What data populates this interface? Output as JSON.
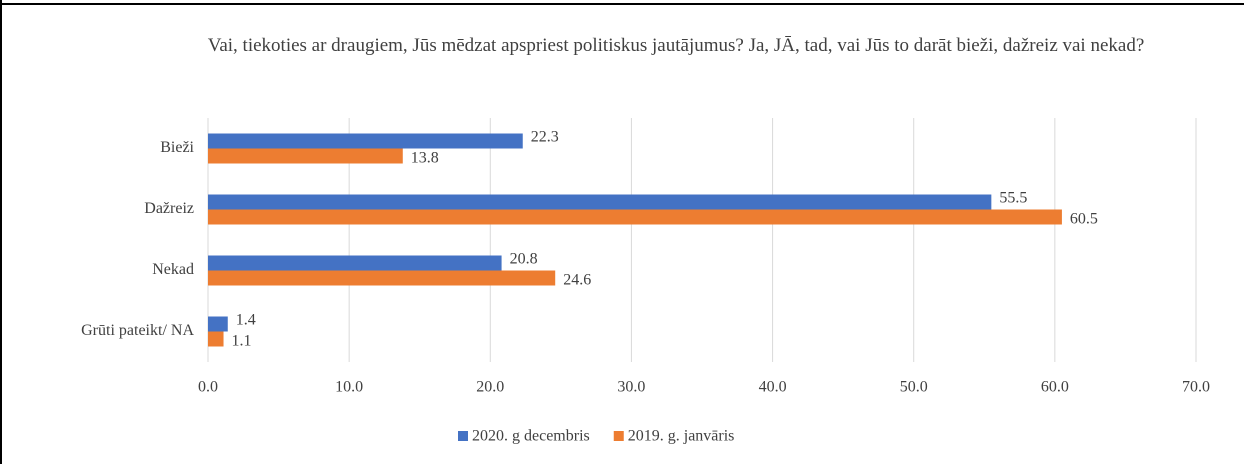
{
  "chart_data": {
    "type": "barh",
    "title": "Vai, tiekoties ar draugiem, Jūs mēdzat apspriest politiskus jautājumus? Ja, JĀ, tad, vai Jūs to darāt bieži, dažreiz vai nekad?",
    "categories": [
      "Bieži",
      "Dažreiz",
      "Nekad",
      "Grūti pateikt/ NA"
    ],
    "series": [
      {
        "name": "2020. g decembris",
        "color": "#4472c4",
        "values": [
          22.3,
          55.5,
          20.8,
          1.4
        ]
      },
      {
        "name": "2019. g. janvāris",
        "color": "#ed7d31",
        "values": [
          13.8,
          60.5,
          24.6,
          1.1
        ]
      }
    ],
    "xlim": [
      0,
      70
    ],
    "xticks": [
      {
        "value": 0,
        "label": "0.0"
      },
      {
        "value": 10,
        "label": "10.0"
      },
      {
        "value": 20,
        "label": "20.0"
      },
      {
        "value": 30,
        "label": "30.0"
      },
      {
        "value": 40,
        "label": "40.0"
      },
      {
        "value": 50,
        "label": "50.0"
      },
      {
        "value": 60,
        "label": "60.0"
      },
      {
        "value": 70,
        "label": "70.0"
      }
    ],
    "grid": true,
    "legend": "bottom"
  }
}
